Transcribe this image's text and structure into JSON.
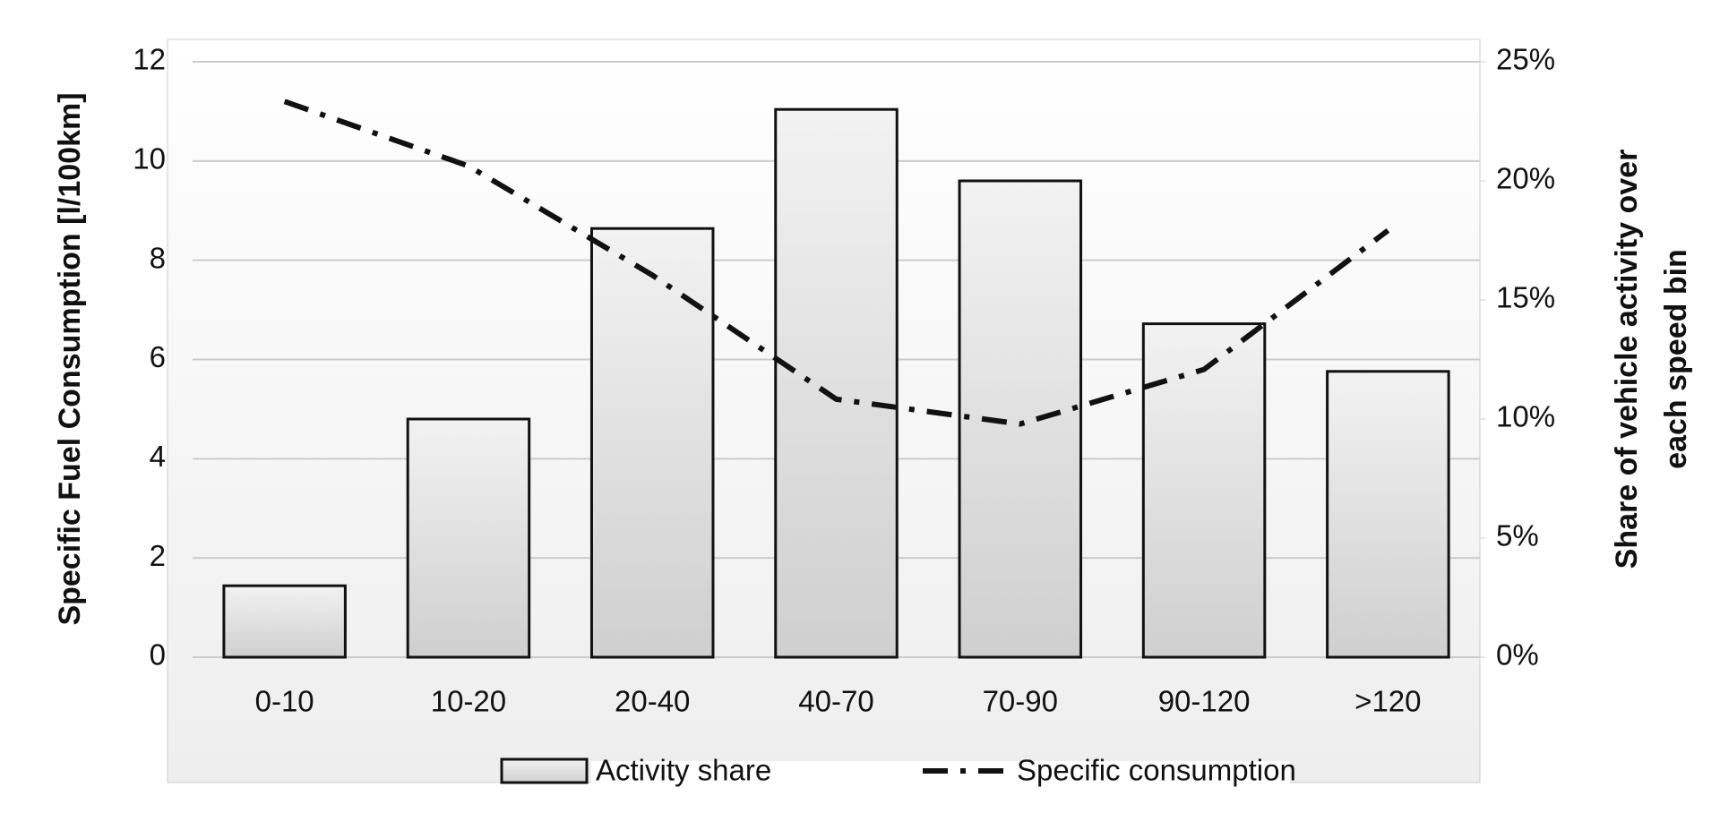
{
  "chart_data": {
    "type": "bar-line",
    "categories": [
      "0-10",
      "10-20",
      "20-40",
      "40-70",
      "70-90",
      "90-120",
      ">120"
    ],
    "y_label": "Specific Fuel Consumption [l/100km]",
    "y2_label": [
      "Share of vehicle activity over",
      "each speed bin"
    ],
    "ylim": [
      0,
      12
    ],
    "yticks": [
      0,
      2,
      4,
      6,
      8,
      10,
      12
    ],
    "y2lim": [
      0,
      25
    ],
    "y2ticks": [
      {
        "value": 0,
        "label": "0%"
      },
      {
        "value": 5,
        "label": "5%"
      },
      {
        "value": 10,
        "label": "10%"
      },
      {
        "value": 15,
        "label": "15%"
      },
      {
        "value": 20,
        "label": "20%"
      },
      {
        "value": 25,
        "label": "25%"
      }
    ],
    "grid": true,
    "series": [
      {
        "name": "Activity share",
        "type": "bar",
        "axis": "y2",
        "color": "#d9d9d9",
        "values": [
          3,
          10,
          18,
          23,
          20,
          14,
          12
        ]
      },
      {
        "name": "Specific consumption",
        "type": "line",
        "axis": "y",
        "color": "#111111",
        "values": [
          11.2,
          9.9,
          7.7,
          5.2,
          4.7,
          5.8,
          8.6
        ]
      }
    ]
  }
}
